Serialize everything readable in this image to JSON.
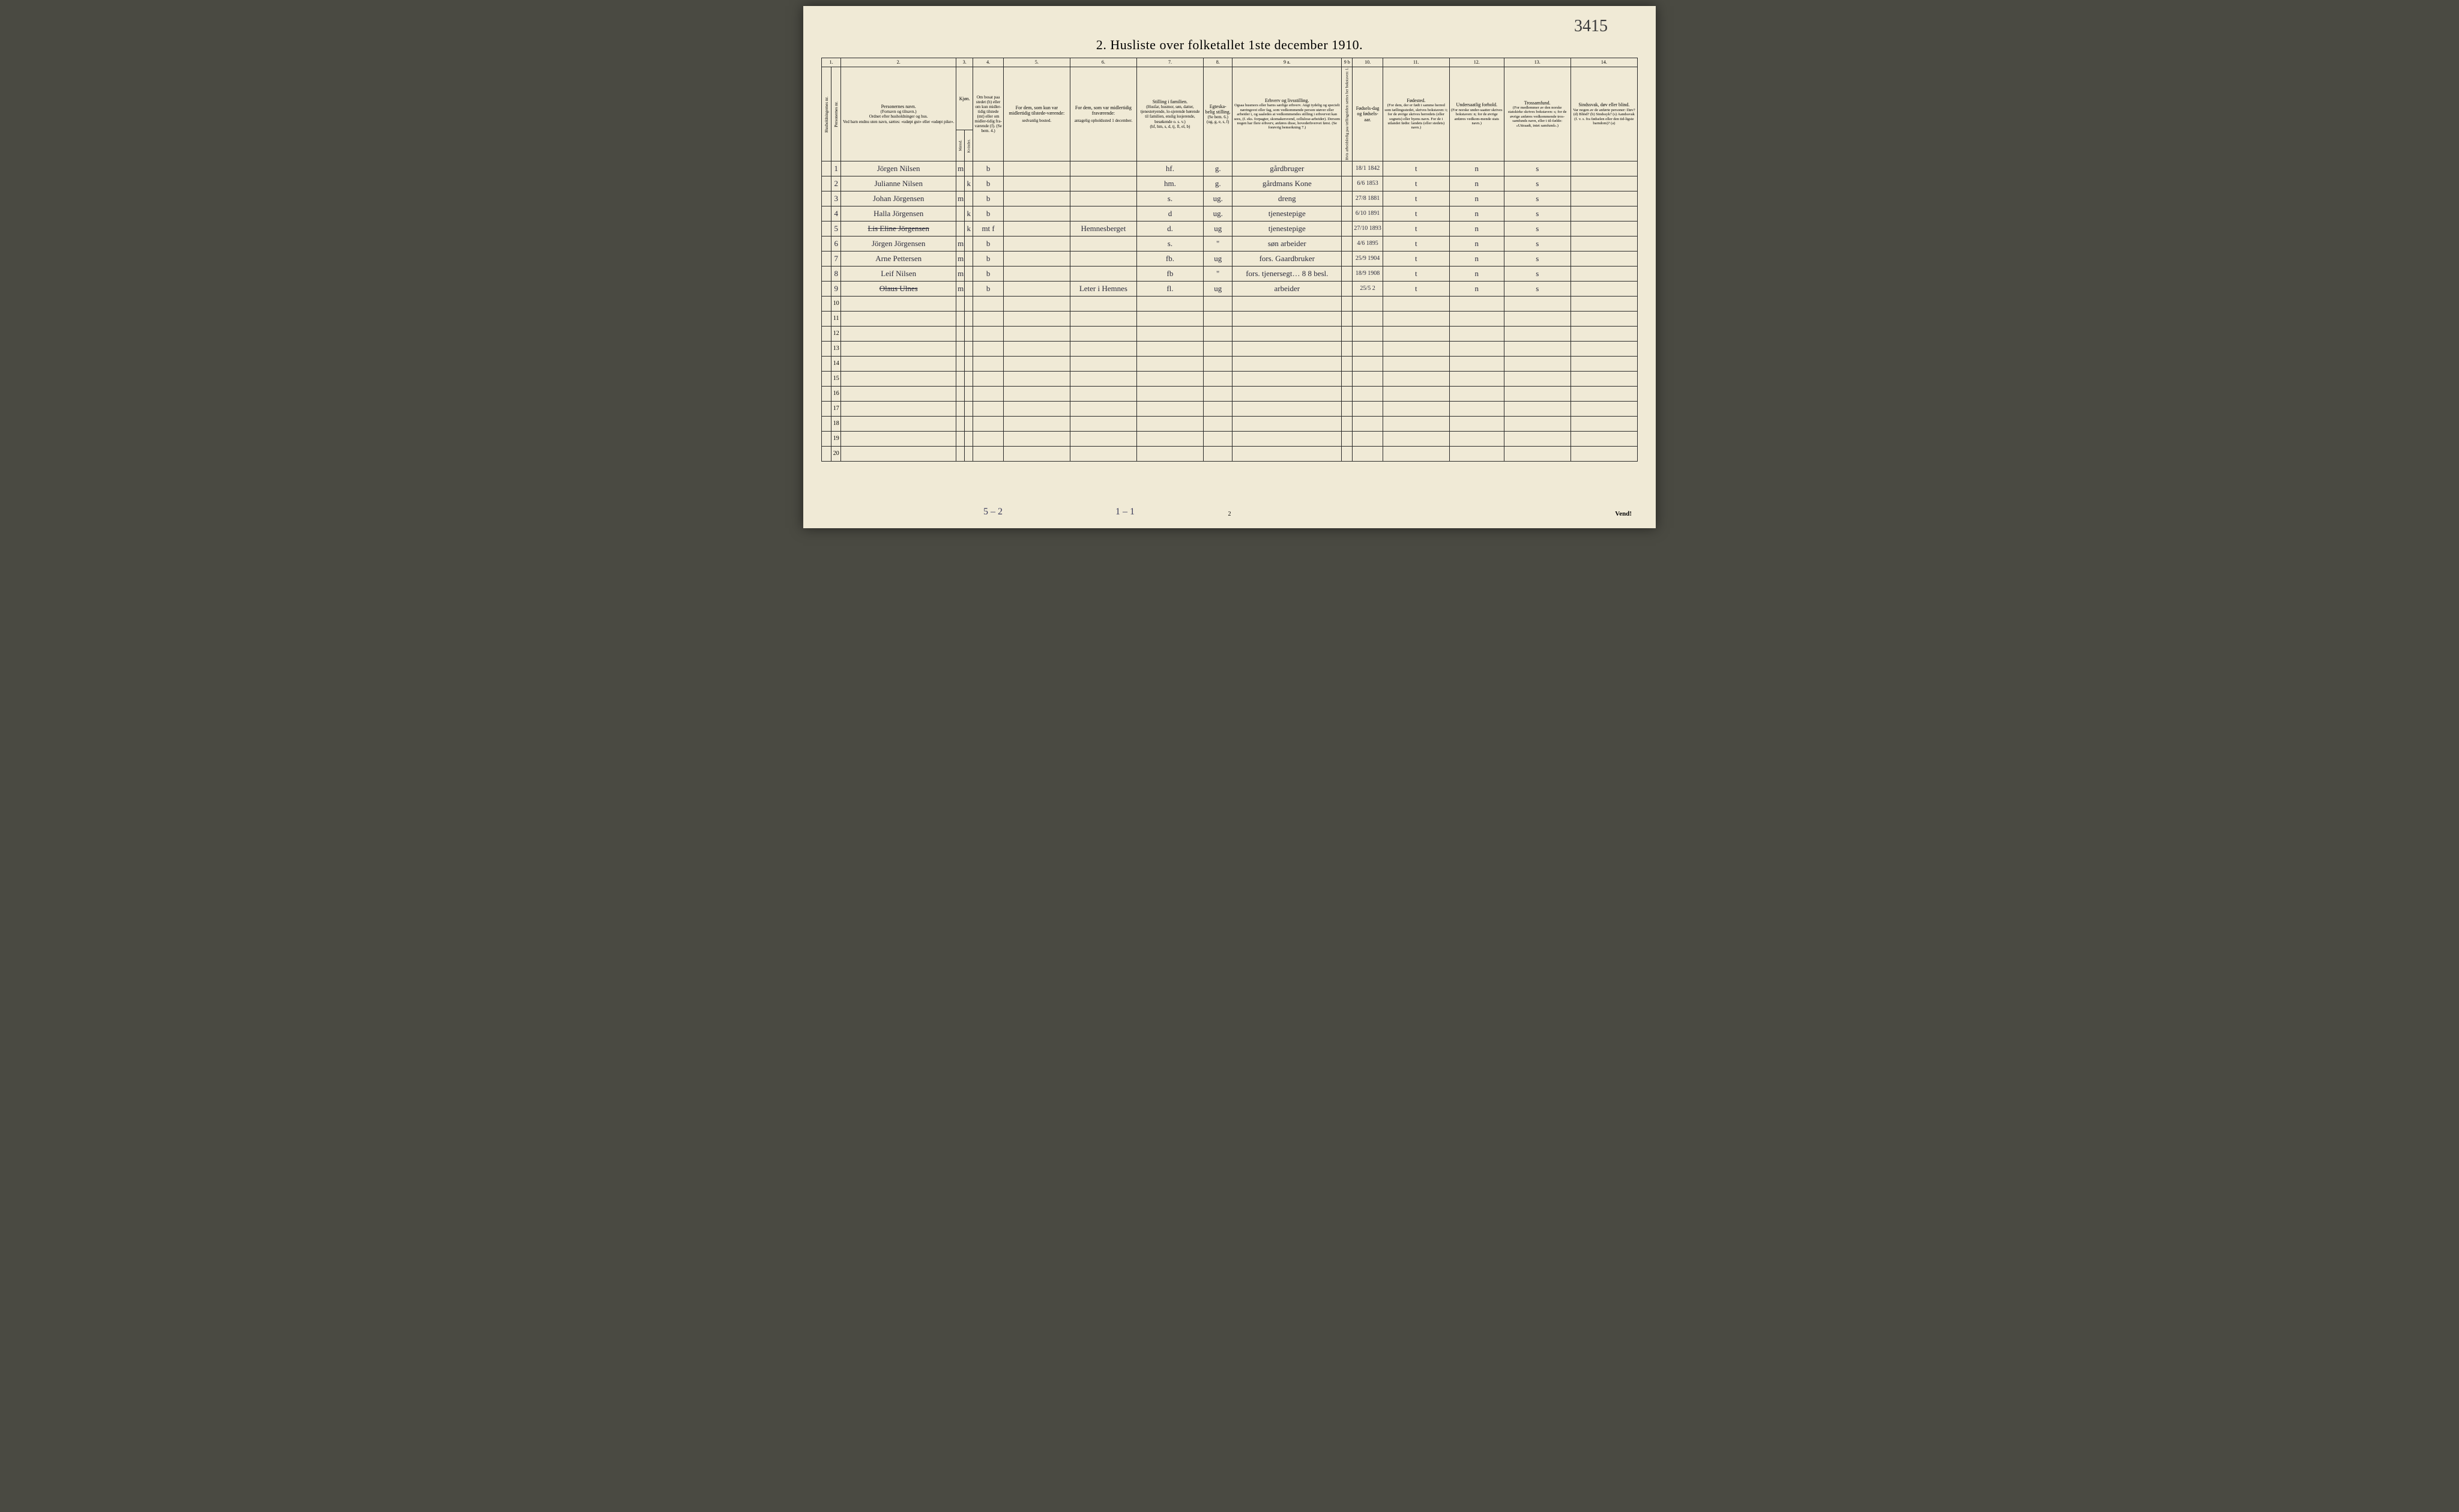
{
  "page_number_top": "3415",
  "title": "2.  Husliste over folketallet 1ste december 1910.",
  "col_numbers": [
    "1.",
    "2.",
    "3.",
    "4.",
    "5.",
    "6.",
    "7.",
    "8.",
    "9 a.",
    "9 b",
    "10.",
    "11.",
    "12.",
    "13.",
    "14."
  ],
  "headers": {
    "c1a": "Husholdningernes nr.",
    "c1b": "Personernes nr.",
    "c2_title": "Personernes navn.",
    "c2_sub1": "(Fornavn og tilnavn.)",
    "c2_sub2": "Ordnet efter husholdninger og hus.",
    "c2_sub3": "Ved barn endnu uten navn, sættes: «udøpt gut» eller «udøpt pike».",
    "c3_title": "Kjøn.",
    "c3_m": "Mænd.",
    "c3_k": "Kvinder.",
    "c3_mk": "m.  k.",
    "c4": "Om bosat paa stedet (b) eller om kun midler-tidig tilstede (mt) eller om midler-tidig fra-værende (f). (Se bem. 4.)",
    "c5_title": "For dem, som kun var midlertidig tilstede-værende:",
    "c5_sub": "sedvanlig bosted.",
    "c6_title": "For dem, som var midlertidig fraværende:",
    "c6_sub": "antagelig opholdssted 1 december.",
    "c7_title": "Stilling i familien.",
    "c7_sub1": "(Husfar, husmor, søn, datter, tjenestetyende, lo-sjerende hørende til familien, enslig losjerende, besøkende o. s. v.)",
    "c7_sub2": "(hf, hm, s, d, tj, fl, el, b)",
    "c8_title": "Egteska-belig stilling.",
    "c8_sub1": "(Se bem. 6.)",
    "c8_sub2": "(ug, g, e, s, f)",
    "c9a_title": "Erhverv og livsstilling.",
    "c9a_sub": "Ogsaa husmors eller barns særlige erhverv. Angi tydelig og specielt næringsvei eller fag, som vedkommende person utøver eller arbeider i, og saaledes at vedkommendes stilling i erhvervet kan sees, (f. eks. forpagter, skomakersvend, cellulose-arbeider). Dersom nogen har flere erhverv, anføres disse, hovederhvervet først. (Se forøvrig bemerkning 7.)",
    "c9b": "Hvis arbeidsledig paa tællingstiden sættes her bokstaven: l.",
    "c10_title": "Fødsels-dag og fødsels-aar.",
    "c11_title": "Fødested.",
    "c11_sub": "(For dem, der er født i samme herred som tællingsstedet, skrives bokstaven: t; for de øvrige skrives herredets (eller sognets) eller byens navn. For de i utlandet fødte: landets (eller stedets) navn.)",
    "c12_title": "Undersaatlig forhold.",
    "c12_sub": "(For norske under-saatter skrives bokstaven: n; for de øvrige anføres vedkom-mende stats navn.)",
    "c13_title": "Trossamfund.",
    "c13_sub": "(For medlemmer av den norske statskirke skrives bokstaven: s; for de øvrige anføres vedkommende tros-samfunds navn, eller i til-fælde: «Uttraadt, intet samfund».)",
    "c14_title": "Sindssvak, døv eller blind.",
    "c14_sub": "Var nogen av de anførte personer: Døv? (d)  Blind? (b)  Sindssyk? (s)  Aandssvak (f. v. s. fra fødselen eller den tid-ligste barndom)? (a)"
  },
  "rows": [
    {
      "n": "1",
      "name": "Jörgen Nilsen",
      "m": "m",
      "k": "",
      "b": "b",
      "c5": "",
      "c6": "",
      "c7": "hf.",
      "c8": "g.",
      "c9a": "gårdbruger",
      "c9b": "",
      "c10": "18/1 1842",
      "c11": "t",
      "c12": "n",
      "c13": "s",
      "c14": ""
    },
    {
      "n": "2",
      "name": "Julianne Nilsen",
      "m": "",
      "k": "k",
      "b": "b",
      "c5": "",
      "c6": "",
      "c7": "hm.",
      "c8": "g.",
      "c9a": "gårdmans Kone",
      "c9b": "",
      "c10": "6/6 1853",
      "c11": "t",
      "c12": "n",
      "c13": "s",
      "c14": ""
    },
    {
      "n": "3",
      "name": "Johan Jörgensen",
      "m": "m",
      "k": "",
      "b": "b",
      "c5": "",
      "c6": "",
      "c7": "s.",
      "c8": "ug.",
      "c9a": "dreng",
      "c9b": "",
      "c10": "27/8 1881",
      "c11": "t",
      "c12": "n",
      "c13": "s",
      "c14": ""
    },
    {
      "n": "4",
      "name": "Halla Jörgensen",
      "m": "",
      "k": "k",
      "b": "b",
      "c5": "",
      "c6": "",
      "c7": "d",
      "c8": "ug.",
      "c9a": "tjenestepige",
      "c9b": "",
      "c10": "6/10 1891",
      "c11": "t",
      "c12": "n",
      "c13": "s",
      "c14": ""
    },
    {
      "n": "5",
      "name": "Lis Eline Jörgensen",
      "m": "",
      "k": "k",
      "b": "mt f",
      "c5": "",
      "c6": "Hemnesberget",
      "c7": "d.",
      "c8": "ug",
      "c9a": "tjenestepige",
      "c9b": "",
      "c10": "27/10 1893",
      "c11": "t",
      "c12": "n",
      "c13": "s",
      "c14": ""
    },
    {
      "n": "6",
      "name": "Jörgen Jörgensen",
      "m": "m",
      "k": "",
      "b": "b",
      "c5": "",
      "c6": "",
      "c7": "s.",
      "c8": "\"",
      "c9a": "søn arbeider",
      "c9b": "",
      "c10": "4/6 1895",
      "c11": "t",
      "c12": "n",
      "c13": "s",
      "c14": ""
    },
    {
      "n": "7",
      "name": "Arne Pettersen",
      "m": "m",
      "k": "",
      "b": "b",
      "c5": "",
      "c6": "",
      "c7": "fb.",
      "c8": "ug",
      "c9a": "fors. Gaardbruker",
      "c9b": "",
      "c10": "25/9 1904",
      "c11": "t",
      "c12": "n",
      "c13": "s",
      "c14": ""
    },
    {
      "n": "8",
      "name": "Leif Nilsen",
      "m": "m",
      "k": "",
      "b": "b",
      "c5": "",
      "c6": "",
      "c7": "fb",
      "c8": "\"",
      "c9a": "fors. tjenersegt… 8 8 besl.",
      "c9b": "",
      "c10": "18/9 1908",
      "c11": "t",
      "c12": "n",
      "c13": "s",
      "c14": ""
    },
    {
      "n": "9",
      "name": "Olaus Ulnes",
      "m": "m",
      "k": "",
      "b": "b",
      "c5": "",
      "c6": "Leter i Hemnes",
      "c7": "fl.",
      "c8": "ug",
      "c9a": "arbeider",
      "c9b": "",
      "c10": "25/5 2",
      "c11": "t",
      "c12": "n",
      "c13": "s",
      "c14": ""
    }
  ],
  "empty_rows": [
    "10",
    "11",
    "12",
    "13",
    "14",
    "15",
    "16",
    "17",
    "18",
    "19",
    "20"
  ],
  "foot_left": "5 – 2",
  "foot_mid": "1 – 1",
  "foot_pagenum": "2",
  "foot_right": "Vend!",
  "col_widths": {
    "c1a": 16,
    "c1b": 16,
    "c2": 190,
    "c3m": 14,
    "c3k": 14,
    "c4": 50,
    "c5": 110,
    "c6": 110,
    "c7": 110,
    "c8": 48,
    "c9a": 180,
    "c9b": 18,
    "c10": 50,
    "c11": 110,
    "c12": 90,
    "c13": 110,
    "c14": 110
  }
}
